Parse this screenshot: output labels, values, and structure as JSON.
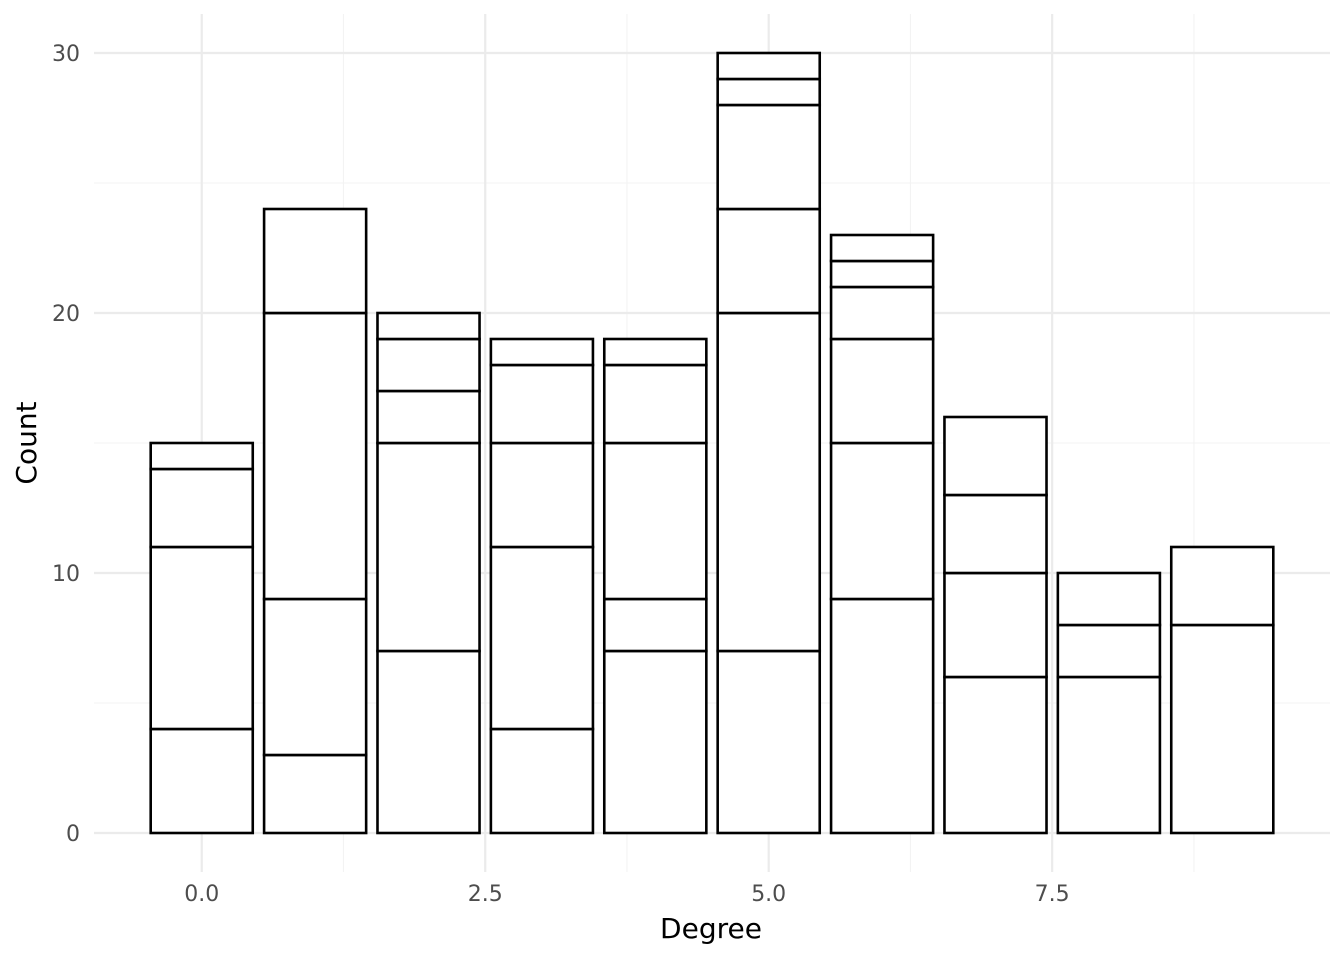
{
  "chart_data": {
    "type": "bar",
    "stacked": true,
    "title": "",
    "xlabel": "Degree",
    "ylabel": "Count",
    "xlim": [
      -0.95,
      9.95
    ],
    "ylim": [
      -1.5,
      31.5
    ],
    "x_ticks": [
      0.0,
      2.5,
      5.0,
      7.5
    ],
    "x_tick_labels": [
      "0.0",
      "2.5",
      "5.0",
      "7.5"
    ],
    "y_ticks": [
      0,
      10,
      20,
      30
    ],
    "y_tick_labels": [
      "0",
      "10",
      "20",
      "30"
    ],
    "grid": true,
    "legend": "none",
    "bars": [
      {
        "x": 0,
        "boundaries": [
          4,
          11,
          14,
          15
        ]
      },
      {
        "x": 1,
        "boundaries": [
          3,
          9,
          20,
          24
        ]
      },
      {
        "x": 2,
        "boundaries": [
          7,
          15,
          17,
          19,
          20
        ]
      },
      {
        "x": 3,
        "boundaries": [
          4,
          11,
          15,
          18,
          19
        ]
      },
      {
        "x": 4,
        "boundaries": [
          7,
          9,
          15,
          18,
          19
        ]
      },
      {
        "x": 5,
        "boundaries": [
          7,
          20,
          24,
          28,
          29,
          30
        ]
      },
      {
        "x": 6,
        "boundaries": [
          9,
          15,
          19,
          21,
          22,
          23
        ]
      },
      {
        "x": 7,
        "boundaries": [
          6,
          10,
          13,
          16
        ]
      },
      {
        "x": 8,
        "boundaries": [
          6,
          8,
          10
        ]
      },
      {
        "x": 9,
        "boundaries": [
          8,
          11
        ]
      }
    ],
    "colors": {
      "bar_fill": "#ffffff",
      "bar_outline": "#000000",
      "grid": "#ebebeb",
      "tick_text": "#4d4d4d"
    }
  }
}
